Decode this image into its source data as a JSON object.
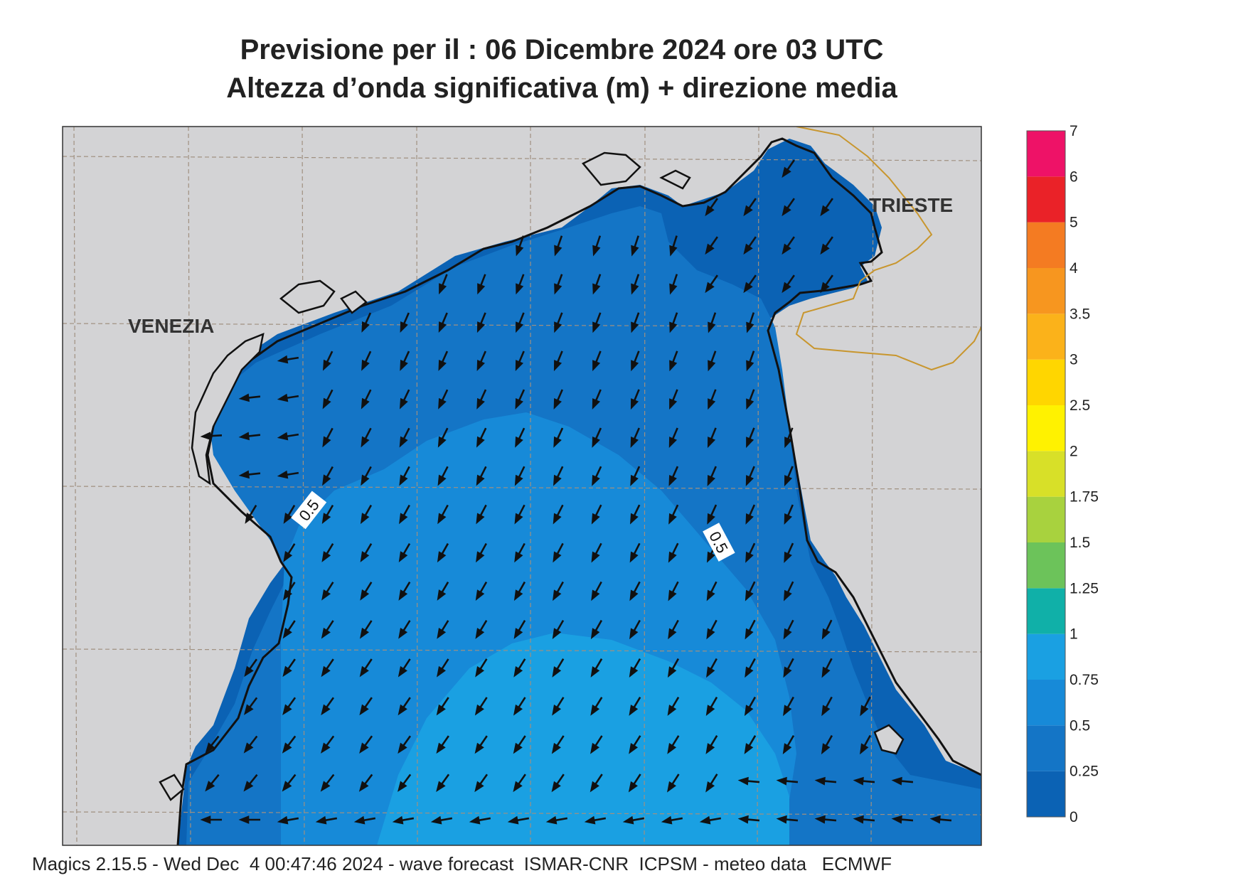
{
  "header": {
    "line1": "Previsione per il  :  06 Dicembre  2024   ore 03 UTC",
    "line2": "Altezza d’onda significativa (m) + direzione media"
  },
  "map": {
    "cities": [
      "VENEZIA",
      "TRIESTE"
    ],
    "contour_labels": [
      "0.5",
      "0.5"
    ],
    "land_color": "#d3d3d5",
    "border_color": "#c8962e",
    "grid_color": "#a09080"
  },
  "colorbar": {
    "levels": [
      "0",
      "0.25",
      "0.5",
      "0.75",
      "1",
      "1.25",
      "1.5",
      "1.75",
      "2",
      "2.5",
      "3",
      "3.5",
      "4",
      "5",
      "6",
      "7"
    ],
    "colors": [
      "#0b62b4",
      "#1475c6",
      "#178ad8",
      "#1aa0e2",
      "#10b0a8",
      "#6cc35a",
      "#a8d23e",
      "#d8e028",
      "#fff200",
      "#ffd600",
      "#fbb21a",
      "#f7961f",
      "#f47b22",
      "#ea2228",
      "#ee1267"
    ]
  },
  "footer": {
    "text": "Magics 2.15.5 - Wed Dec  4 00:47:46 2024 - wave forecast  ISMAR-CNR  ICPSM - meteo data   ECMWF"
  }
}
